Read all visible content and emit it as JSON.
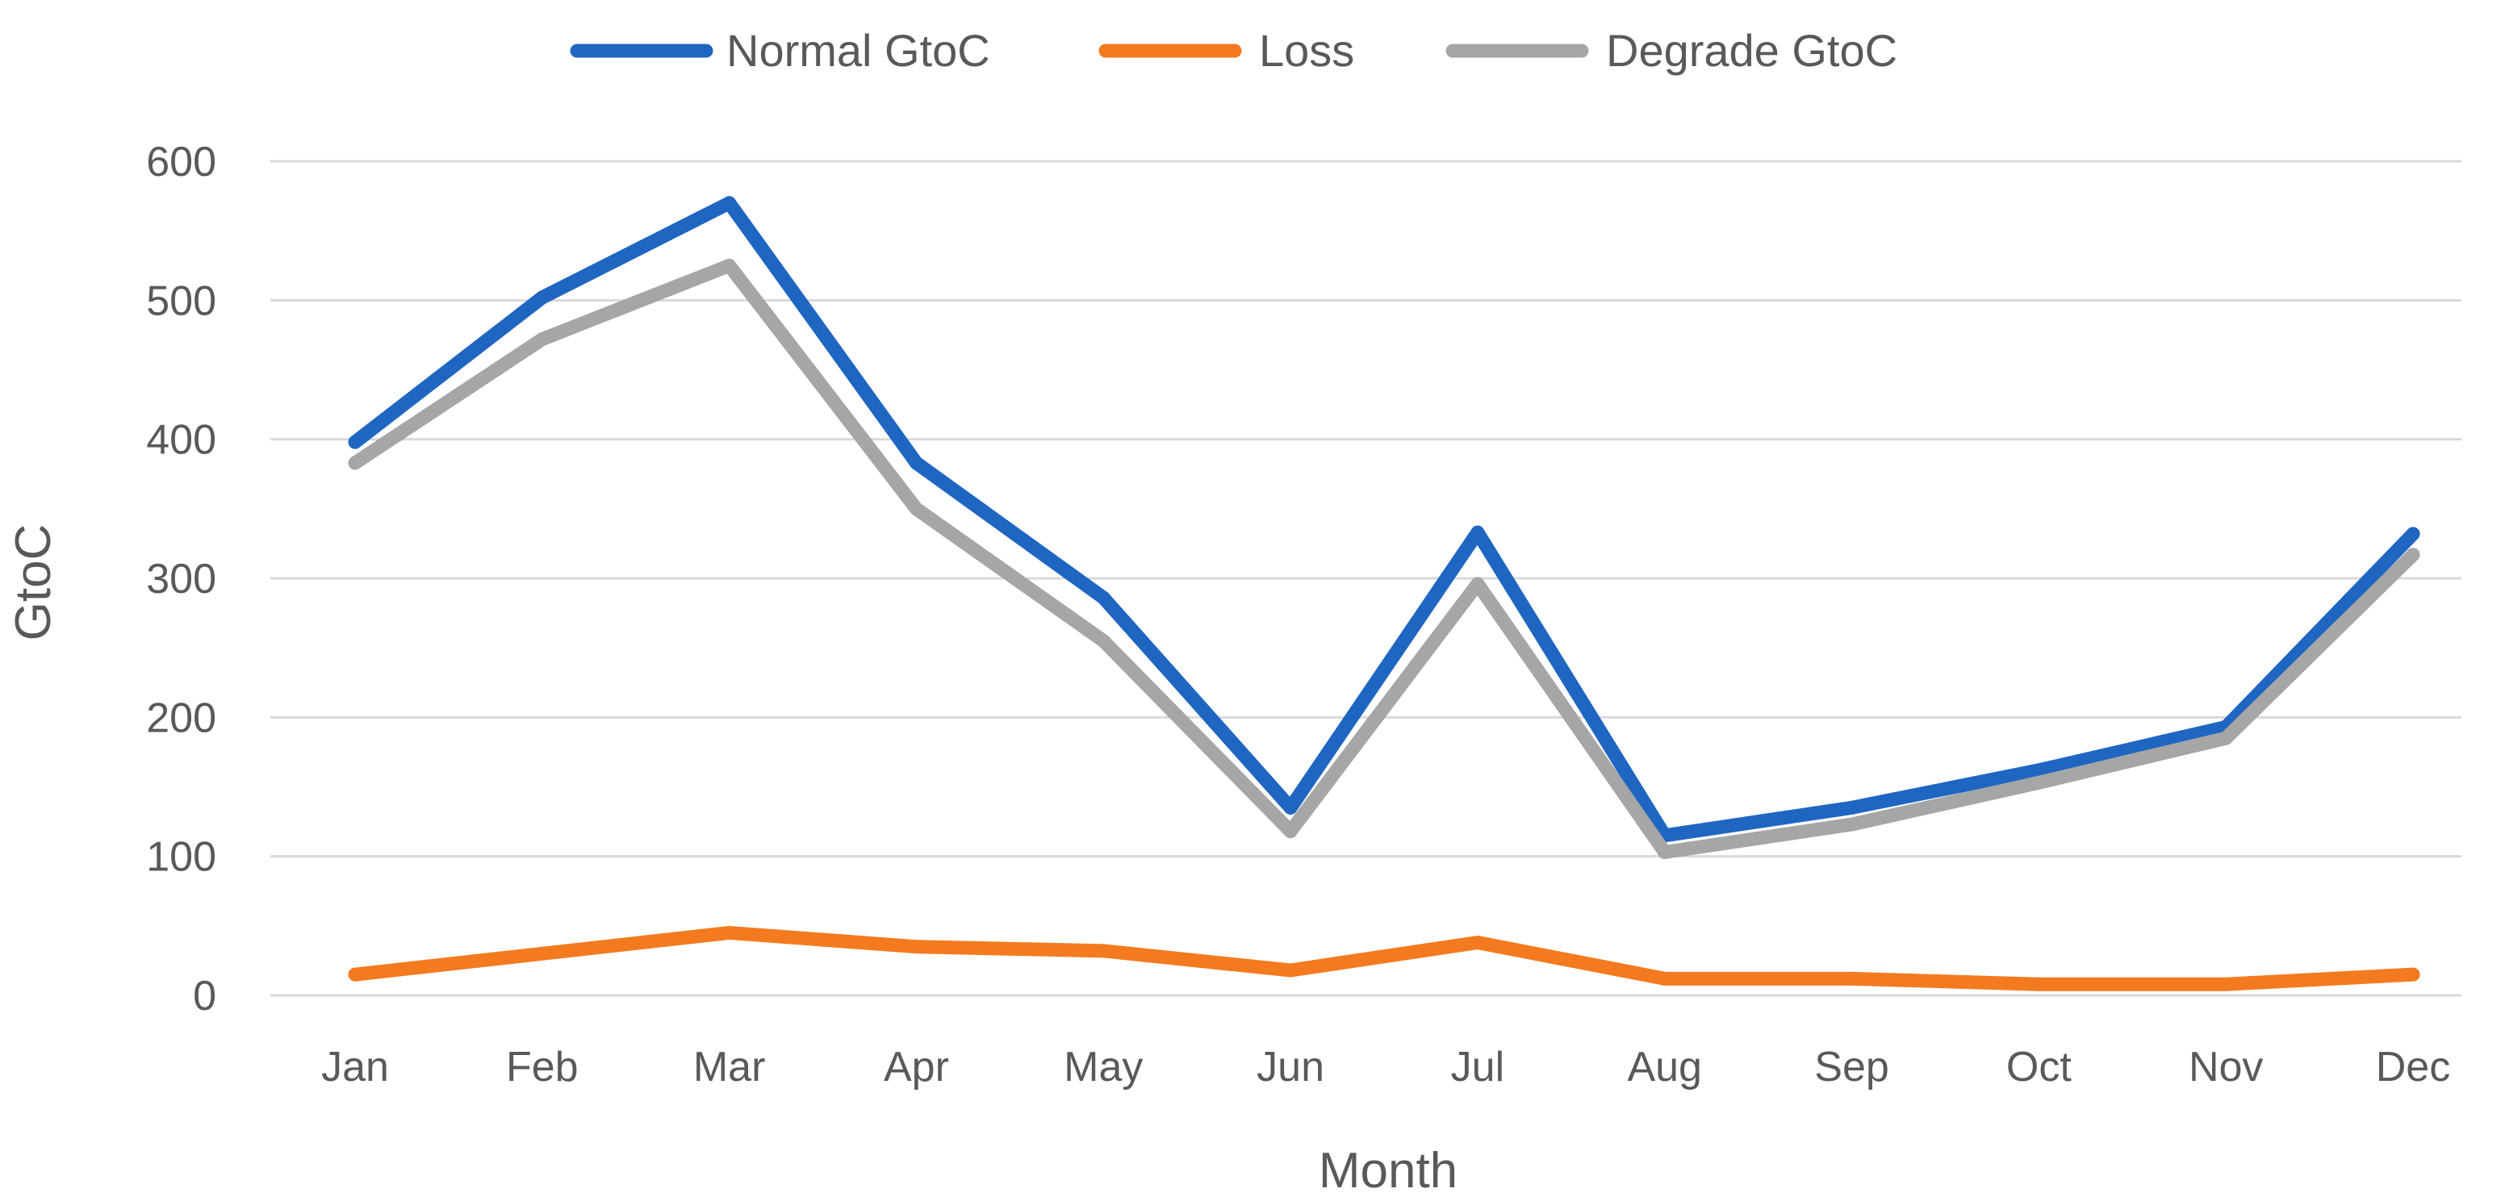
{
  "chart_data": {
    "type": "line",
    "title": "",
    "xlabel": "Month",
    "ylabel": "GtoC",
    "ylim": [
      0,
      600
    ],
    "yticks": [
      0,
      100,
      200,
      300,
      400,
      500,
      600
    ],
    "grid": true,
    "legend_position": "top-center",
    "categories": [
      "Jan",
      "Feb",
      "Mar",
      "Apr",
      "May",
      "Jun",
      "Jul",
      "Aug",
      "Sep",
      "Oct",
      "Nov",
      "Dec"
    ],
    "series": [
      {
        "name": "Normal GtoC",
        "color": "#1f66c2",
        "values": [
          398,
          502,
          570,
          383,
          286,
          135,
          333,
          115,
          135,
          162,
          193,
          332
        ]
      },
      {
        "name": "Loss",
        "color": "#f47a20",
        "values": [
          15,
          30,
          45,
          35,
          32,
          18,
          38,
          12,
          12,
          8,
          8,
          15
        ]
      },
      {
        "name": "Degrade GtoC",
        "color": "#a6a6a6",
        "values": [
          383,
          472,
          525,
          350,
          255,
          118,
          296,
          103,
          123,
          153,
          185,
          317
        ]
      }
    ]
  }
}
